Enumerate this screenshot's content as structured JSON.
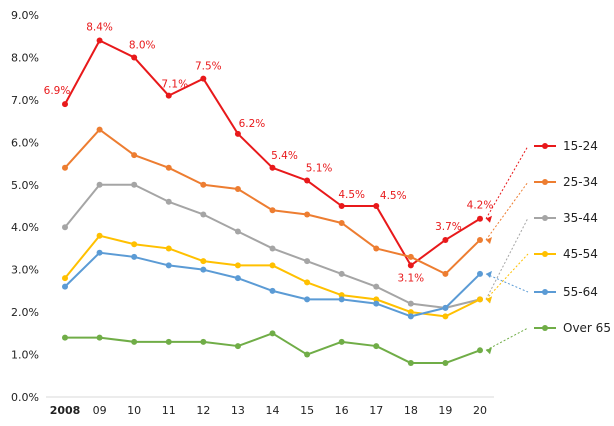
{
  "chart_data": {
    "type": "line",
    "categories": [
      "2008",
      "09",
      "10",
      "11",
      "12",
      "13",
      "14",
      "15",
      "16",
      "17",
      "18",
      "19",
      "20"
    ],
    "ylim": [
      0,
      9
    ],
    "y_ticks": [
      "0.0%",
      "1.0%",
      "2.0%",
      "3.0%",
      "4.0%",
      "5.0%",
      "6.0%",
      "7.0%",
      "8.0%",
      "9.0%"
    ],
    "y_unit": "%",
    "grid": false,
    "legend_position": "right",
    "series": [
      {
        "name": "15-24",
        "color": "#e8191b",
        "values": [
          6.9,
          8.4,
          8.0,
          7.1,
          7.5,
          6.2,
          5.4,
          5.1,
          4.5,
          4.5,
          3.1,
          3.7,
          4.2
        ],
        "data_labels": [
          "6.9%",
          "8.4%",
          "8.0%",
          "7.1%",
          "7.5%",
          "6.2%",
          "5.4%",
          "5.1%",
          "4.5%",
          "4.5%",
          "3.1%",
          "3.7%",
          "4.2%"
        ]
      },
      {
        "name": "25-34",
        "color": "#ed7d31",
        "values": [
          5.4,
          6.3,
          5.7,
          5.4,
          5.0,
          4.9,
          4.4,
          4.3,
          4.1,
          3.5,
          3.3,
          2.9,
          3.7
        ]
      },
      {
        "name": "35-44",
        "color": "#a5a5a5",
        "values": [
          4.0,
          5.0,
          5.0,
          4.6,
          4.3,
          3.9,
          3.5,
          3.2,
          2.9,
          2.6,
          2.2,
          2.1,
          2.3
        ]
      },
      {
        "name": "45-54",
        "color": "#ffc000",
        "values": [
          2.8,
          3.8,
          3.6,
          3.5,
          3.2,
          3.1,
          3.1,
          2.7,
          2.4,
          2.3,
          2.0,
          1.9,
          2.3
        ]
      },
      {
        "name": "55-64",
        "color": "#5b9bd5",
        "values": [
          2.6,
          3.4,
          3.3,
          3.1,
          3.0,
          2.8,
          2.5,
          2.3,
          2.3,
          2.2,
          1.9,
          2.1,
          2.9
        ]
      },
      {
        "name": "Over 65",
        "color": "#70ad47",
        "values": [
          1.4,
          1.4,
          1.3,
          1.3,
          1.3,
          1.2,
          1.5,
          1.0,
          1.3,
          1.2,
          0.8,
          0.8,
          1.1
        ]
      }
    ]
  }
}
